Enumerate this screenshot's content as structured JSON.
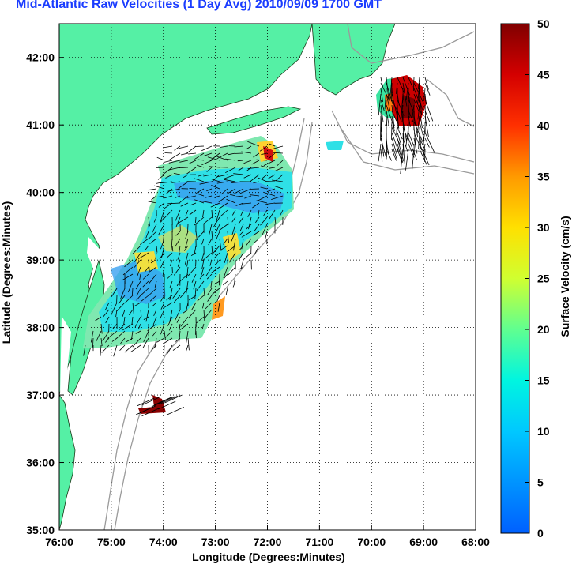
{
  "title": "Mid-Atlantic Raw Velocities (1 Day Avg) 2010/09/09 1700 GMT",
  "x_axis": {
    "label": "Longitude (Degrees:Minutes)",
    "ticks": [
      "76:00",
      "75:00",
      "74:00",
      "73:00",
      "72:00",
      "71:00",
      "70:00",
      "69:00",
      "68:00"
    ]
  },
  "y_axis": {
    "label": "Latitude (Degrees:Minutes)",
    "ticks": [
      "35:00",
      "36:00",
      "37:00",
      "38:00",
      "39:00",
      "40:00",
      "41:00",
      "42:00"
    ]
  },
  "colorbar": {
    "label": "Surface Velocity (cm/s)",
    "ticks": [
      "0",
      "5",
      "10",
      "15",
      "20",
      "25",
      "30",
      "35",
      "40",
      "45",
      "50"
    ],
    "min": 0,
    "max": 50
  },
  "colors": {
    "land": "#55f0a5",
    "title": "#1a3cff",
    "bathymetry": "#9a9a9a"
  },
  "extent": {
    "lon_min": -76,
    "lon_max": -68,
    "lat_min": 35,
    "lat_max": 42.5
  },
  "grid": "dotted"
}
